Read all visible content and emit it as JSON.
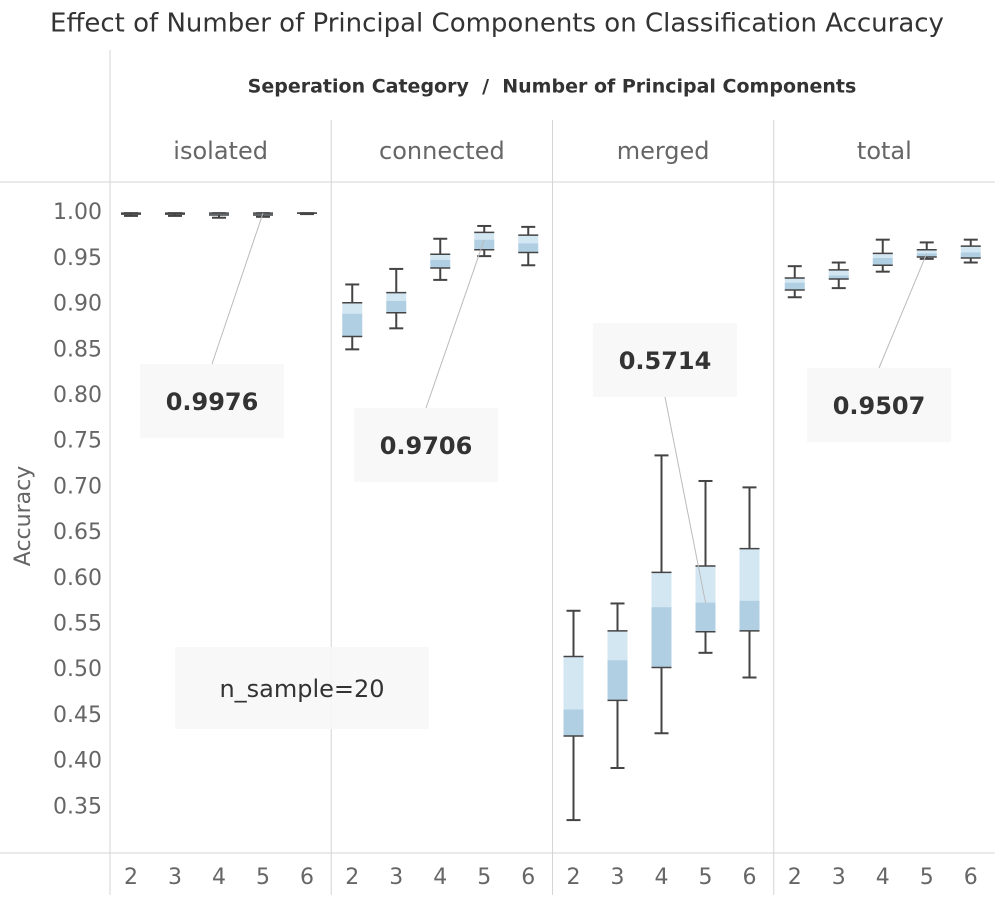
{
  "chart_data": {
    "type": "box",
    "title": "Effect of Number of Principal Components on Classification Accuracy",
    "column_header": "Seperation Category  /  Number of Principal Components",
    "y_label": "Accuracy",
    "categories": [
      "2",
      "3",
      "4",
      "5",
      "6"
    ],
    "ylim": [
      0.3,
      1.033
    ],
    "yticks": [
      {
        "value": 0.35,
        "label": "0.35"
      },
      {
        "value": 0.4,
        "label": "0.40"
      },
      {
        "value": 0.45,
        "label": "0.45"
      },
      {
        "value": 0.5,
        "label": "0.50"
      },
      {
        "value": 0.55,
        "label": "0.55"
      },
      {
        "value": 0.6,
        "label": "0.60"
      },
      {
        "value": 0.65,
        "label": "0.65"
      },
      {
        "value": 0.7,
        "label": "0.70"
      },
      {
        "value": 0.75,
        "label": "0.75"
      },
      {
        "value": 0.8,
        "label": "0.80"
      },
      {
        "value": 0.85,
        "label": "0.85"
      },
      {
        "value": 0.9,
        "label": "0.90"
      },
      {
        "value": 0.95,
        "label": "0.95"
      },
      {
        "value": 1.0,
        "label": "1.00"
      }
    ],
    "upper_color": "#d3e7f3",
    "lower_color": "#b0cfe3",
    "whisker_color": "#444444",
    "panels": [
      {
        "name": "isolated",
        "boxes": [
          {
            "min": 0.997,
            "q1": 0.999,
            "median": 1.0,
            "q3": 1.0,
            "max": 1.0
          },
          {
            "min": 0.997,
            "q1": 0.999,
            "median": 1.0,
            "q3": 1.0,
            "max": 1.0
          },
          {
            "min": 0.995,
            "q1": 0.998,
            "median": 1.0,
            "q3": 1.0,
            "max": 1.0
          },
          {
            "min": 0.996,
            "q1": 0.998,
            "median": 1.0,
            "q3": 1.0,
            "max": 1.0
          },
          {
            "min": 0.999,
            "q1": 1.0,
            "median": 1.0,
            "q3": 1.0,
            "max": 1.0
          }
        ]
      },
      {
        "name": "connected",
        "boxes": [
          {
            "min": 0.851,
            "q1": 0.865,
            "median": 0.89,
            "q3": 0.902,
            "max": 0.922
          },
          {
            "min": 0.874,
            "q1": 0.891,
            "median": 0.904,
            "q3": 0.913,
            "max": 0.939
          },
          {
            "min": 0.927,
            "q1": 0.94,
            "median": 0.949,
            "q3": 0.955,
            "max": 0.972
          },
          {
            "min": 0.953,
            "q1": 0.96,
            "median": 0.971,
            "q3": 0.979,
            "max": 0.986
          },
          {
            "min": 0.943,
            "q1": 0.957,
            "median": 0.967,
            "q3": 0.976,
            "max": 0.985
          }
        ]
      },
      {
        "name": "merged",
        "boxes": [
          {
            "min": 0.336,
            "q1": 0.428,
            "median": 0.457,
            "q3": 0.515,
            "max": 0.565
          },
          {
            "min": 0.393,
            "q1": 0.467,
            "median": 0.511,
            "q3": 0.543,
            "max": 0.573
          },
          {
            "min": 0.431,
            "q1": 0.503,
            "median": 0.569,
            "q3": 0.607,
            "max": 0.735
          },
          {
            "min": 0.519,
            "q1": 0.542,
            "median": 0.574,
            "q3": 0.614,
            "max": 0.707
          },
          {
            "min": 0.492,
            "q1": 0.543,
            "median": 0.576,
            "q3": 0.633,
            "max": 0.7
          }
        ]
      },
      {
        "name": "total",
        "boxes": [
          {
            "min": 0.908,
            "q1": 0.916,
            "median": 0.924,
            "q3": 0.929,
            "max": 0.942
          },
          {
            "min": 0.918,
            "q1": 0.928,
            "median": 0.932,
            "q3": 0.938,
            "max": 0.946
          },
          {
            "min": 0.936,
            "q1": 0.943,
            "median": 0.951,
            "q3": 0.956,
            "max": 0.971
          },
          {
            "min": 0.95,
            "q1": 0.952,
            "median": 0.956,
            "q3": 0.96,
            "max": 0.968
          },
          {
            "min": 0.946,
            "q1": 0.951,
            "median": 0.957,
            "q3": 0.964,
            "max": 0.971
          }
        ]
      }
    ],
    "annotations": [
      "0.9976",
      "0.9706",
      "0.5714",
      "0.9507",
      "n_sample=20"
    ]
  }
}
